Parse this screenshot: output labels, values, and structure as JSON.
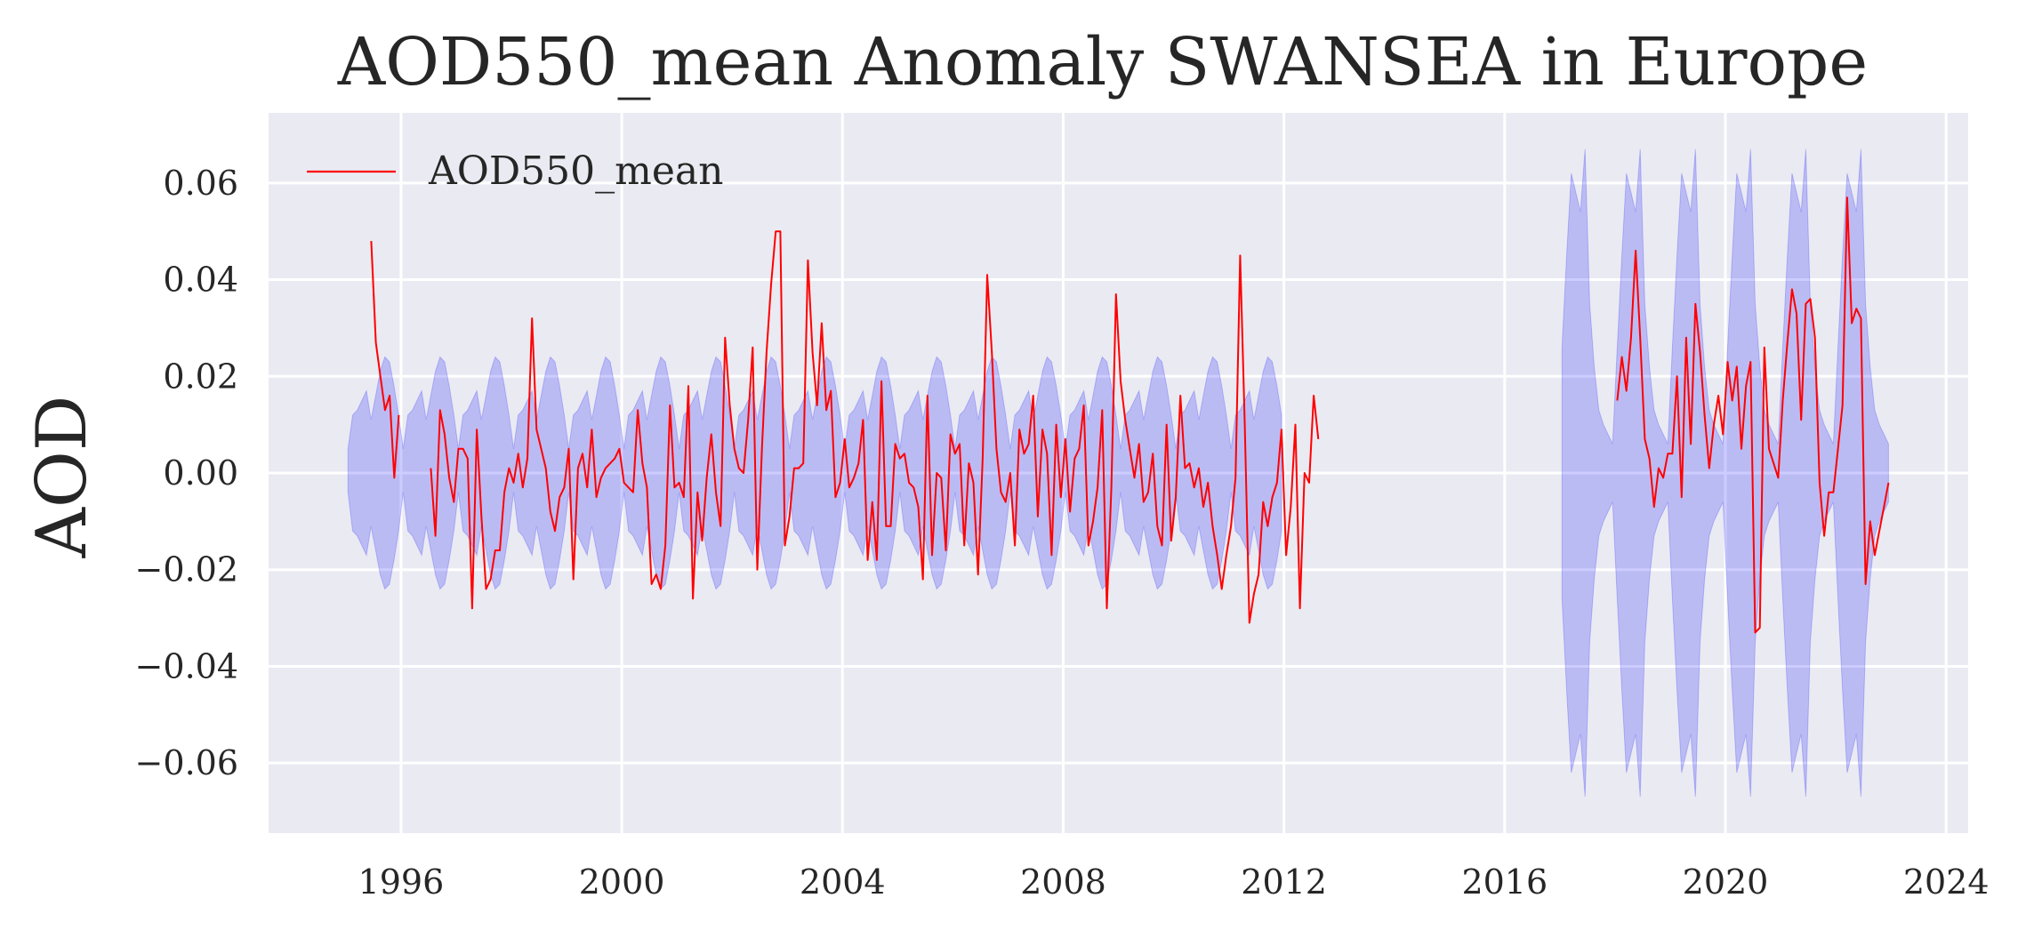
{
  "chart_data": {
    "type": "line",
    "title": "AOD550_mean Anomaly SWANSEA in Europe",
    "xlabel": "",
    "ylabel": "AOD",
    "xlim": [
      1993.6,
      2024.4
    ],
    "ylim": [
      -0.0745,
      0.0745
    ],
    "x_ticks": [
      1996,
      2000,
      2004,
      2008,
      2012,
      2016,
      2020,
      2024
    ],
    "y_ticks": [
      -0.06,
      -0.04,
      -0.02,
      0.0,
      0.02,
      0.04,
      0.06
    ],
    "y_tick_labels": [
      "−0.06",
      "−0.04",
      "−0.02",
      "0.00",
      "0.02",
      "0.04",
      "0.06"
    ],
    "grid": true,
    "legend_position": "upper-left",
    "colors": {
      "line": "#ff0000",
      "band": "#0000ff",
      "background": "#eaeaf2",
      "grid": "#ffffff"
    },
    "series": [
      {
        "name": "AOD550_mean",
        "segments": [
          {
            "start": 1995.46,
            "values": [
              0.048,
              0.027,
              0.02,
              0.013,
              0.016,
              -0.001,
              0.012
            ]
          },
          {
            "start": 1996.54,
            "values": [
              0.001,
              -0.013,
              0.013,
              0.008,
              -0.001,
              -0.006,
              0.005,
              0.005,
              0.003,
              -0.028,
              0.009,
              -0.009,
              -0.024,
              -0.022,
              -0.016,
              -0.016,
              -0.004,
              0.001,
              -0.002,
              0.004,
              -0.003,
              0.003,
              0.032,
              0.009,
              0.005,
              0.001,
              -0.008,
              -0.012,
              -0.005,
              -0.003,
              0.005,
              -0.022,
              0.001,
              0.004,
              -0.003,
              0.009,
              -0.005,
              -0.001,
              0.001,
              0.002,
              0.003,
              0.005,
              -0.002,
              -0.003,
              -0.004,
              0.013,
              0.002,
              -0.003,
              -0.023,
              -0.021,
              -0.024,
              -0.015,
              0.014,
              -0.003,
              -0.002,
              -0.005,
              0.018,
              -0.026,
              -0.004,
              -0.014,
              -0.001,
              0.008,
              -0.004,
              -0.011,
              0.028,
              0.014,
              0.005,
              0.001,
              0.0,
              0.011,
              0.026,
              -0.02,
              0.005,
              0.025,
              0.039,
              0.05,
              0.05,
              -0.015,
              -0.009,
              0.001,
              0.001,
              0.002,
              0.044,
              0.025,
              0.014,
              0.031,
              0.013,
              0.017,
              -0.005,
              -0.002,
              0.007,
              -0.003,
              -0.001,
              0.002,
              0.011,
              -0.018,
              -0.006,
              -0.018,
              0.019,
              -0.011,
              -0.011,
              0.006,
              0.003,
              0.004,
              -0.002,
              -0.003,
              -0.007,
              -0.022,
              0.016,
              -0.017,
              0.0,
              -0.001,
              -0.016,
              0.008,
              0.004,
              0.006,
              -0.015,
              0.002,
              -0.002,
              -0.021,
              0.003,
              0.041,
              0.025,
              0.005,
              -0.004,
              -0.006,
              0.0,
              -0.015,
              0.009,
              0.004,
              0.006,
              0.016,
              -0.009,
              0.009,
              0.004,
              -0.017,
              0.01,
              -0.005,
              0.007,
              -0.008,
              0.003,
              0.005,
              0.014,
              -0.015,
              -0.01,
              -0.003,
              0.013,
              -0.028,
              -0.003,
              0.037,
              0.019,
              0.011,
              0.005,
              -0.001,
              0.006,
              -0.006,
              -0.004,
              0.004,
              -0.011,
              -0.015,
              0.01,
              -0.014,
              -0.005,
              0.016,
              0.001,
              0.002,
              -0.003,
              0.001,
              -0.007,
              -0.002,
              -0.011,
              -0.017,
              -0.024,
              -0.017,
              -0.011,
              -0.001,
              0.045,
              0.01,
              -0.031,
              -0.025,
              -0.021,
              -0.006,
              -0.011,
              -0.005,
              -0.002,
              0.009,
              -0.017,
              -0.007,
              0.01,
              -0.028,
              0.0,
              -0.002,
              0.016,
              0.007
            ]
          },
          {
            "start": 2018.04,
            "values": [
              0.015,
              0.024,
              0.017,
              0.028,
              0.046,
              0.028,
              0.007,
              0.003,
              -0.007,
              0.001,
              -0.001,
              0.004,
              0.004,
              0.02,
              -0.005,
              0.028,
              0.006,
              0.035,
              0.025,
              0.012,
              0.001,
              0.01,
              0.016,
              0.008,
              0.023,
              0.015,
              0.022,
              0.005,
              0.018,
              0.023,
              -0.033,
              -0.032,
              0.026,
              0.005,
              0.002,
              -0.001,
              0.015,
              0.027,
              0.038,
              0.033,
              0.011,
              0.035,
              0.036,
              0.028,
              -0.002,
              -0.013,
              -0.004,
              -0.004,
              0.005,
              0.014,
              0.057,
              0.031,
              0.034,
              0.032,
              -0.023,
              -0.01,
              -0.017,
              -0.012,
              -0.007,
              -0.002
            ]
          }
        ]
      }
    ],
    "band": {
      "segments": [
        {
          "start": 1995.04,
          "end": 2011.96,
          "upper_monthly": [
            0.005,
            0.012,
            0.013,
            0.015,
            0.017,
            0.011,
            0.016,
            0.021,
            0.024,
            0.023,
            0.018,
            0.012
          ],
          "lower_monthly": [
            -0.004,
            -0.012,
            -0.013,
            -0.015,
            -0.017,
            -0.011,
            -0.016,
            -0.021,
            -0.024,
            -0.023,
            -0.018,
            -0.012
          ]
        },
        {
          "start": 2017.04,
          "end": 2022.96,
          "upper_monthly": [
            0.026,
            0.045,
            0.062,
            0.058,
            0.054,
            0.067,
            0.035,
            0.022,
            0.013,
            0.01,
            0.008,
            0.006
          ],
          "lower_monthly": [
            -0.026,
            -0.045,
            -0.062,
            -0.058,
            -0.054,
            -0.067,
            -0.035,
            -0.022,
            -0.013,
            -0.01,
            -0.008,
            -0.006
          ]
        }
      ]
    }
  }
}
